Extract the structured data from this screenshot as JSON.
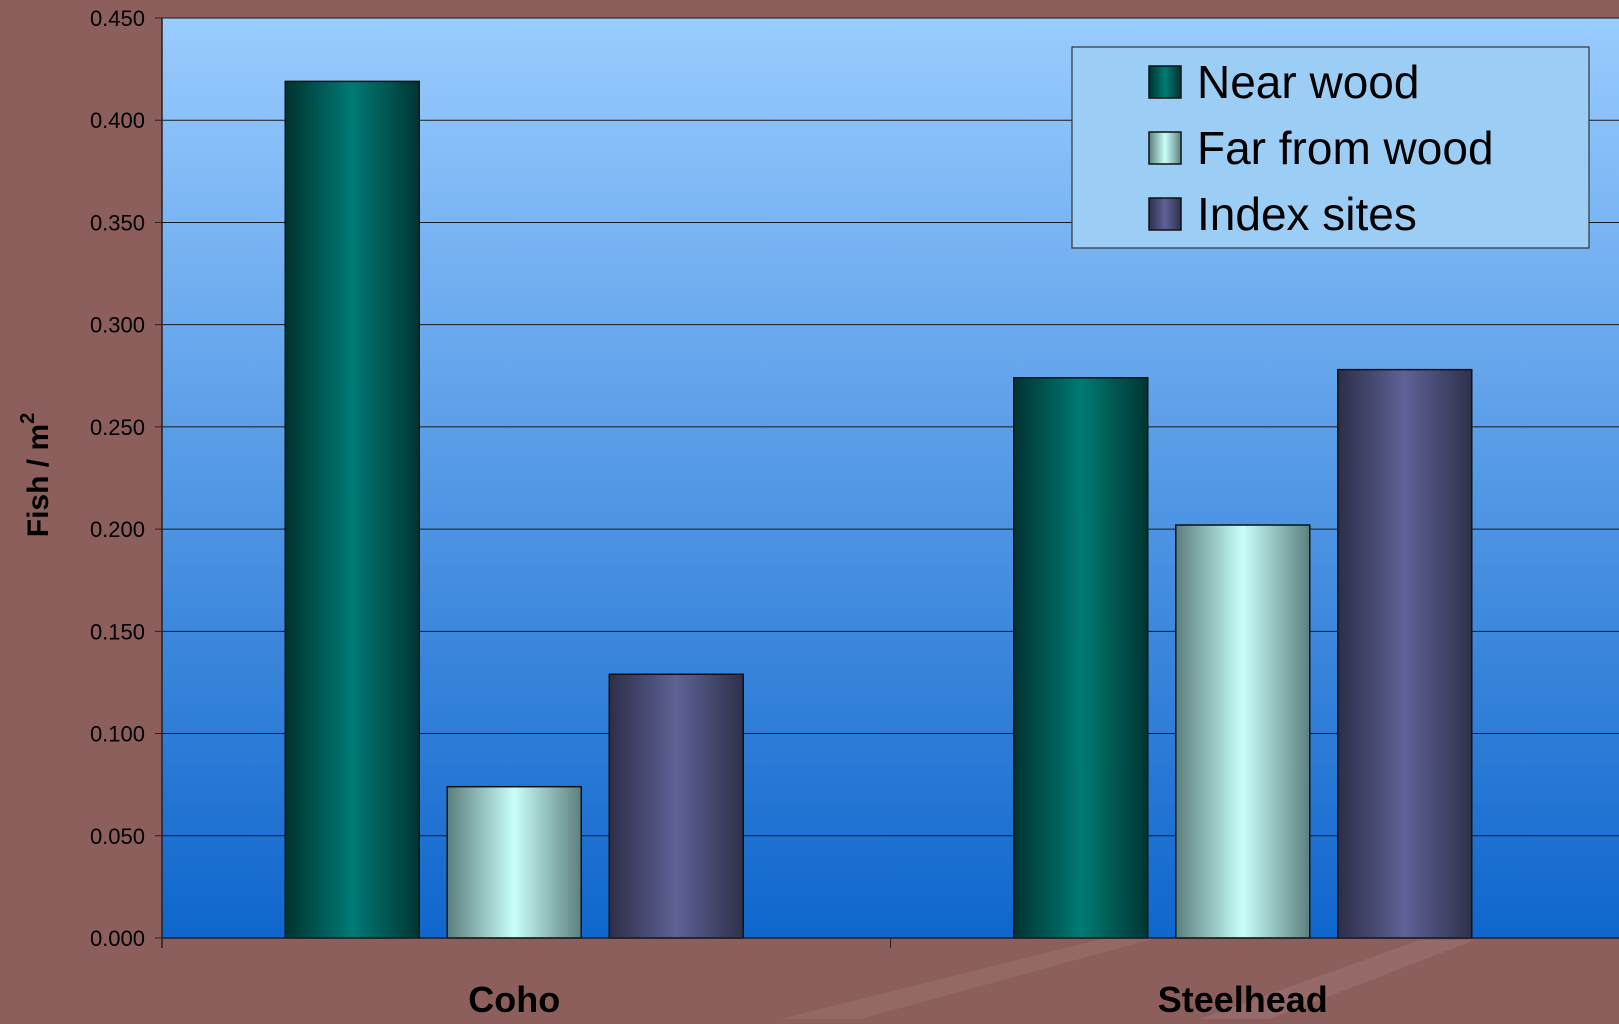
{
  "colors": {
    "page_background": "#8c5f5c",
    "plot_top": "#99ccff",
    "plot_bottom": "#0f66cc",
    "near_wood": "#007a74",
    "far_from_wood": "#c8fffa",
    "index_sites": "#5f6296",
    "gridline": "#1a1a1a"
  },
  "chart_data": {
    "type": "bar",
    "ylabel": "Fish / m",
    "ylabel_superscript": "2",
    "ylim": [
      0,
      0.45
    ],
    "ytick_step": 0.05,
    "ytick_labels": [
      "0.000",
      "0.050",
      "0.100",
      "0.150",
      "0.200",
      "0.250",
      "0.300",
      "0.350",
      "0.400",
      "0.450"
    ],
    "grid": true,
    "legend_position": "top-right",
    "categories": [
      "Coho",
      "Steelhead"
    ],
    "series": [
      {
        "name": "Near wood",
        "values": [
          0.419,
          0.274
        ]
      },
      {
        "name": "Far from wood",
        "values": [
          0.074,
          0.202
        ]
      },
      {
        "name": "Index sites",
        "values": [
          0.129,
          0.278
        ]
      }
    ]
  }
}
